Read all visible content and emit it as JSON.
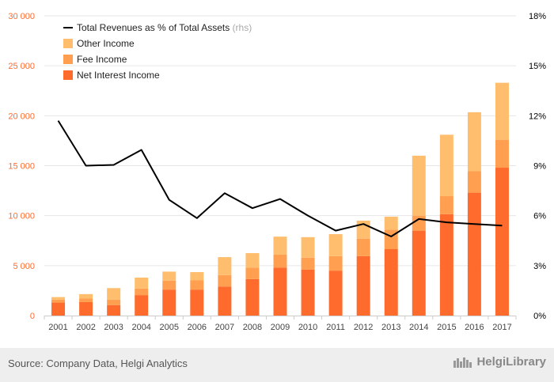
{
  "chart_data": {
    "type": "bar",
    "stacked": true,
    "categories": [
      "2001",
      "2002",
      "2003",
      "2004",
      "2005",
      "2006",
      "2007",
      "2008",
      "2009",
      "2010",
      "2011",
      "2012",
      "2013",
      "2014",
      "2015",
      "2016",
      "2017"
    ],
    "series": [
      {
        "name": "Net Interest Income",
        "color": "#ff6b2d",
        "values": [
          1300,
          1350,
          1050,
          2050,
          2600,
          2600,
          2900,
          3650,
          4800,
          4600,
          4500,
          5950,
          6650,
          8500,
          10150,
          12300,
          14800
        ]
      },
      {
        "name": "Fee Income",
        "color": "#ff9f4f",
        "values": [
          300,
          350,
          550,
          650,
          900,
          950,
          1150,
          1150,
          1300,
          1200,
          1450,
          1750,
          1950,
          1500,
          1800,
          2150,
          2800
        ]
      },
      {
        "name": "Other Income",
        "color": "#ffbe6e",
        "values": [
          250,
          450,
          1150,
          1100,
          900,
          800,
          1800,
          1450,
          1800,
          2050,
          2200,
          1800,
          1300,
          6000,
          6150,
          5900,
          5700
        ]
      }
    ],
    "line_series": {
      "name": "Total Revenues as % of Total Assets",
      "suffix": "(rhs)",
      "color": "#000000",
      "axis": "right",
      "values": [
        11.7,
        9.0,
        9.05,
        9.95,
        6.95,
        5.85,
        7.35,
        6.45,
        7.0,
        6.0,
        5.1,
        5.5,
        4.75,
        5.8,
        5.6,
        5.5,
        5.4
      ]
    },
    "y_left": {
      "min": 0,
      "max": 30000,
      "ticks": [
        0,
        5000,
        10000,
        15000,
        20000,
        25000,
        30000
      ],
      "tick_labels": [
        "0",
        "5 000",
        "10 000",
        "15 000",
        "20 000",
        "25 000",
        "30 000"
      ],
      "color": "#ff6b2d"
    },
    "y_right": {
      "min": 0,
      "max": 18,
      "ticks": [
        0,
        3,
        6,
        9,
        12,
        15,
        18
      ],
      "tick_labels": [
        "0%",
        "3%",
        "6%",
        "9%",
        "12%",
        "15%",
        "18%"
      ],
      "color": "#000000"
    },
    "grid": true,
    "legend_position": "top-left"
  },
  "footer": {
    "source": "Source: Company Data, Helgi Analytics",
    "logo_text": "HelgiLibrary"
  }
}
